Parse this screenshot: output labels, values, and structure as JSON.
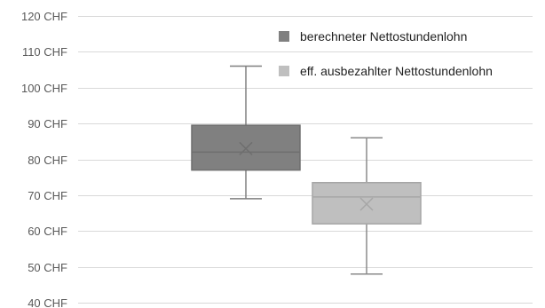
{
  "chart_data": {
    "type": "boxplot",
    "title": "",
    "xlabel": "",
    "ylabel": "",
    "ylim": [
      40,
      120
    ],
    "y_ticks": [
      "40 CHF",
      "50 CHF",
      "60 CHF",
      "70 CHF",
      "80 CHF",
      "90 CHF",
      "100 CHF",
      "110 CHF",
      "120 CHF"
    ],
    "y_tick_values": [
      40,
      50,
      60,
      70,
      80,
      90,
      100,
      110,
      120
    ],
    "grid": true,
    "legend_position": "top-right",
    "series": [
      {
        "name": "berechneter Nettostundenlohn",
        "color": "#808080",
        "min": 69,
        "q1": 77,
        "median": 82,
        "q3": 89.5,
        "max": 106,
        "mean": 83
      },
      {
        "name": "eff. ausbezahlter Nettostundenlohn",
        "color": "#bfbfbf",
        "min": 48,
        "q1": 62,
        "median": 69.5,
        "q3": 73.5,
        "max": 86,
        "mean": 67.5
      }
    ]
  }
}
